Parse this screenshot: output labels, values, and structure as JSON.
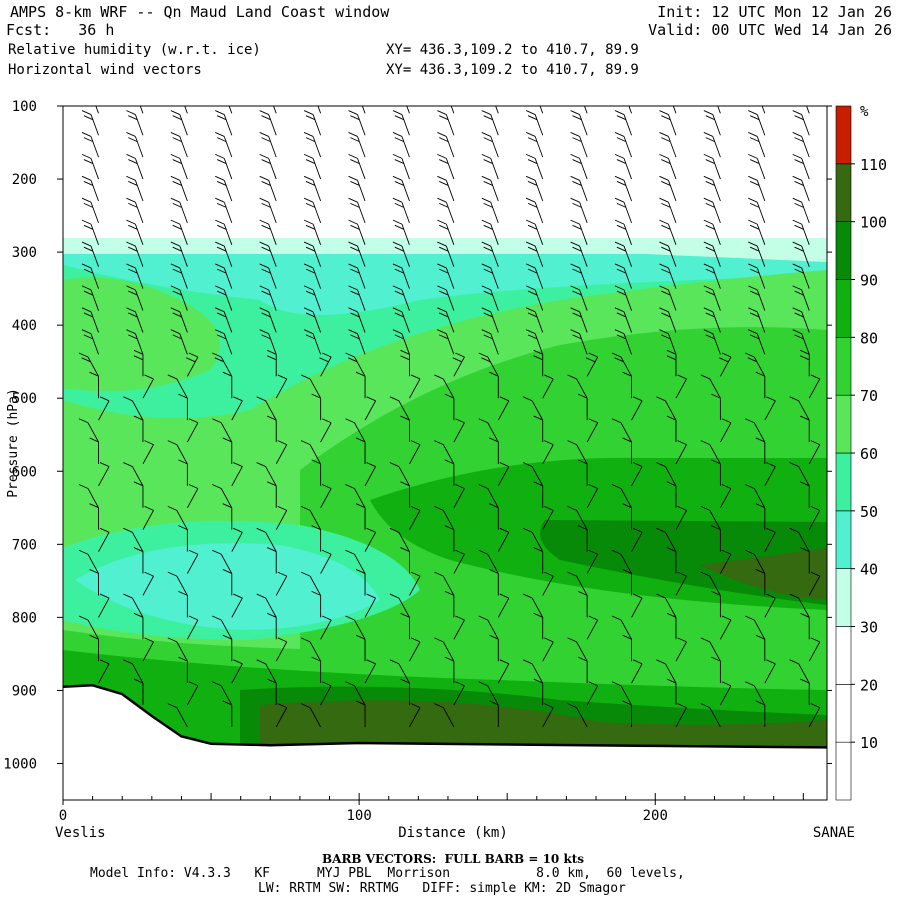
{
  "header": {
    "title": "AMPS 8-km WRF -- Qn Maud Land Coast window",
    "fcst": "Fcst:   36 h",
    "init": "Init: 12 UTC Mon 12 Jan 26",
    "valid": "Valid: 00 UTC Wed 14 Jan 26",
    "field1": "Relative humidity (w.r.t. ice)",
    "field2": "Horizontal wind vectors",
    "xy1": "XY= 436.3,109.2 to 410.7, 89.9",
    "xy2": "XY= 436.3,109.2 to 410.7, 89.9"
  },
  "footer": {
    "barb": "BARB VECTORS:  FULL BARB = 10 kts",
    "model": "Model Info: V4.3.3   KF      MYJ PBL  Morrison           8.0 km,  60 levels,",
    "physics": "LW: RRTM SW: RRTMG   DIFF: simple KM: 2D Smagor"
  },
  "chart_data": {
    "type": "heatmap",
    "title": "Relative humidity (w.r.t. ice) cross section with horizontal wind vectors",
    "xlabel": "Distance (km)",
    "ylabel": "Pressure (hPa)",
    "xlim": [
      0,
      258
    ],
    "ylim": [
      1050,
      100
    ],
    "x_ticks": [
      0,
      100,
      200
    ],
    "y_ticks": [
      100,
      200,
      300,
      400,
      500,
      600,
      700,
      800,
      900,
      1000
    ],
    "x_endpoint_labels": [
      "Veslis",
      "SANAE"
    ],
    "colorbar": {
      "unit": "%",
      "levels": [
        10,
        20,
        30,
        40,
        50,
        60,
        70,
        80,
        90,
        100,
        110
      ],
      "colors": [
        "#ffffff",
        "#ffffff",
        "#ffffff",
        "#c2ffe6",
        "#50f0d0",
        "#3cf0a0",
        "#5ae65a",
        "#32d232",
        "#10b010",
        "#078a07",
        "#356a10",
        "#c81e00"
      ]
    },
    "regions_pct": [
      {
        "label": "cloud-top layer 30-40%",
        "p_range": [
          280,
          300
        ]
      },
      {
        "label": "upper layer 40-50%",
        "p_range": [
          300,
          460
        ]
      },
      {
        "label": "mid layer 60-80%",
        "p_range": [
          450,
          700
        ]
      },
      {
        "label": "moist band 80-100%",
        "p_range": [
          600,
          790
        ]
      },
      {
        "label": "dry pocket 40-50%",
        "p_range": [
          680,
          830
        ]
      },
      {
        "label": "near-surface 90-110%",
        "p_range": [
          880,
          970
        ]
      }
    ],
    "terrain_hpa": [
      [
        0,
        895
      ],
      [
        10,
        893
      ],
      [
        20,
        905
      ],
      [
        30,
        935
      ],
      [
        40,
        963
      ],
      [
        50,
        973
      ],
      [
        70,
        975
      ],
      [
        100,
        972
      ],
      [
        150,
        974
      ],
      [
        200,
        976
      ],
      [
        258,
        978
      ]
    ],
    "wind_barb_columns_km": [
      12,
      27,
      42,
      57,
      72,
      87,
      102,
      117,
      132,
      147,
      162,
      177,
      192,
      207,
      222,
      237,
      252
    ],
    "wind_barb_levels_hpa": [
      110,
      140,
      170,
      200,
      230,
      260,
      290,
      320,
      350,
      380,
      410,
      440,
      470,
      500,
      530,
      560,
      590,
      620,
      650,
      680,
      710,
      740,
      770,
      800,
      830,
      860,
      890,
      920,
      950
    ]
  }
}
